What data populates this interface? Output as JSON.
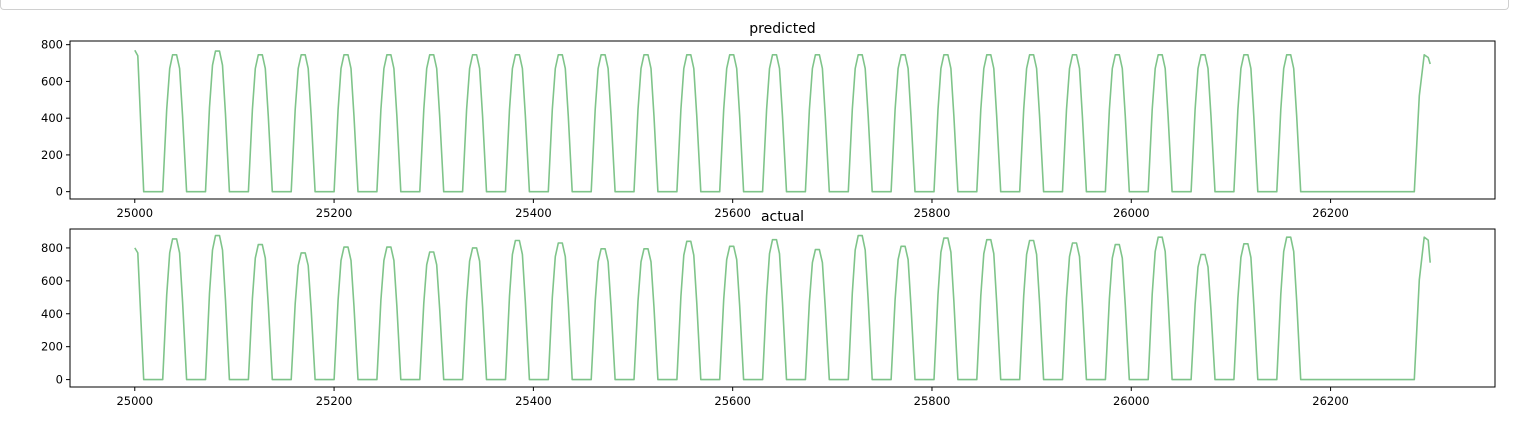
{
  "chart_data": [
    {
      "type": "line",
      "title": "predicted",
      "x_range": [
        25000,
        26300
      ],
      "ylim": [
        0,
        800
      ],
      "xticks": [
        25000,
        25200,
        25400,
        25600,
        25800,
        26000,
        26200
      ],
      "yticks": [
        0,
        200,
        400,
        600,
        800
      ],
      "grid": false,
      "color": "#7fc48a",
      "series": [
        {
          "peaks": [
            770,
            745,
            765,
            745,
            745,
            745,
            745,
            745,
            745,
            745,
            745,
            745,
            745,
            745,
            745,
            745,
            745,
            745,
            745,
            745,
            745,
            745,
            745,
            745,
            745,
            745,
            745,
            745
          ],
          "cycle_length": 48,
          "end_value": 695
        }
      ]
    },
    {
      "type": "line",
      "title": "actual",
      "x_range": [
        25000,
        26300
      ],
      "ylim": [
        0,
        880
      ],
      "xticks": [
        25000,
        25200,
        25400,
        25600,
        25800,
        26000,
        26200
      ],
      "yticks": [
        0,
        200,
        400,
        600,
        800
      ],
      "grid": false,
      "color": "#7fc48a",
      "series": [
        {
          "peaks": [
            800,
            855,
            875,
            820,
            770,
            805,
            805,
            775,
            800,
            845,
            830,
            795,
            795,
            840,
            810,
            850,
            790,
            875,
            810,
            860,
            850,
            845,
            830,
            820,
            865,
            760,
            825,
            865
          ],
          "cycle_length": 48,
          "end_value": 710
        }
      ]
    }
  ]
}
